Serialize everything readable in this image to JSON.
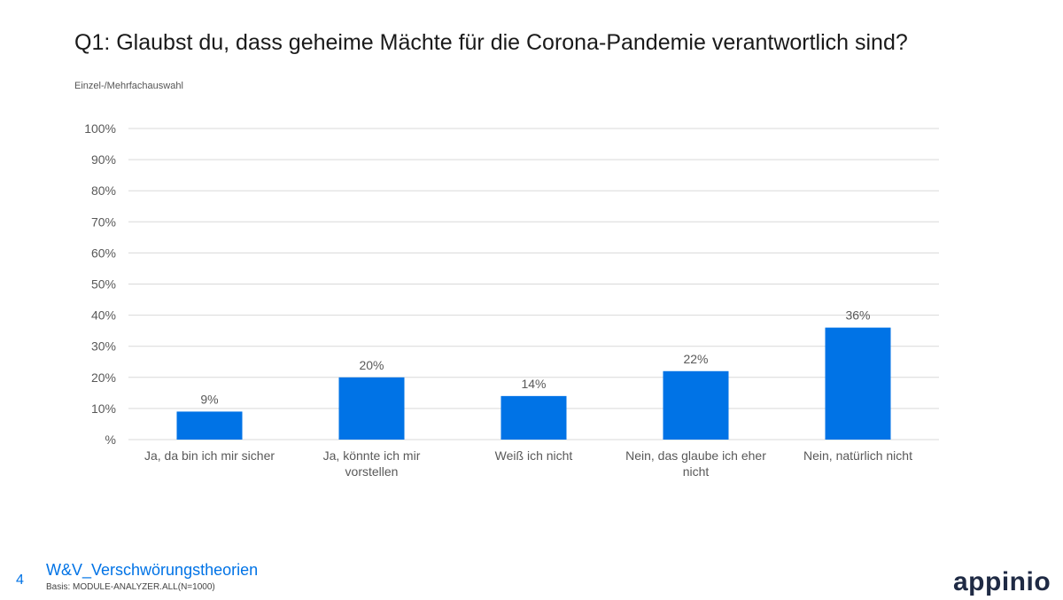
{
  "header": {
    "title": "Q1: Glaubst du, dass geheime Mächte für die Corona-Pandemie verantwortlich sind?",
    "subtitle": "Einzel-/Mehrfachauswahl"
  },
  "footer": {
    "page_number": "4",
    "title": "W&V_Verschwörungstheorien",
    "basis": "Basis: MODULE-ANALYZER.ALL(N=1000)",
    "logo_text": "appinio"
  },
  "colors": {
    "bar": "#0073e6",
    "grid": "#d9d9d9",
    "axis_text": "#595959"
  },
  "chart_data": {
    "type": "bar",
    "categories": [
      [
        "Ja, da bin ich mir sicher"
      ],
      [
        "Ja, könnte ich mir",
        "vorstellen"
      ],
      [
        "Weiß ich nicht"
      ],
      [
        "Nein, das glaube ich eher",
        "nicht"
      ],
      [
        "Nein, natürlich nicht"
      ]
    ],
    "values": [
      9,
      20,
      14,
      22,
      36
    ],
    "data_labels": [
      "9%",
      "20%",
      "14%",
      "22%",
      "36%"
    ],
    "y_ticks": [
      "%",
      "10%",
      "20%",
      "30%",
      "40%",
      "50%",
      "60%",
      "70%",
      "80%",
      "90%",
      "100%"
    ],
    "ylim": [
      0,
      100
    ],
    "grid": true,
    "legend": "none"
  }
}
